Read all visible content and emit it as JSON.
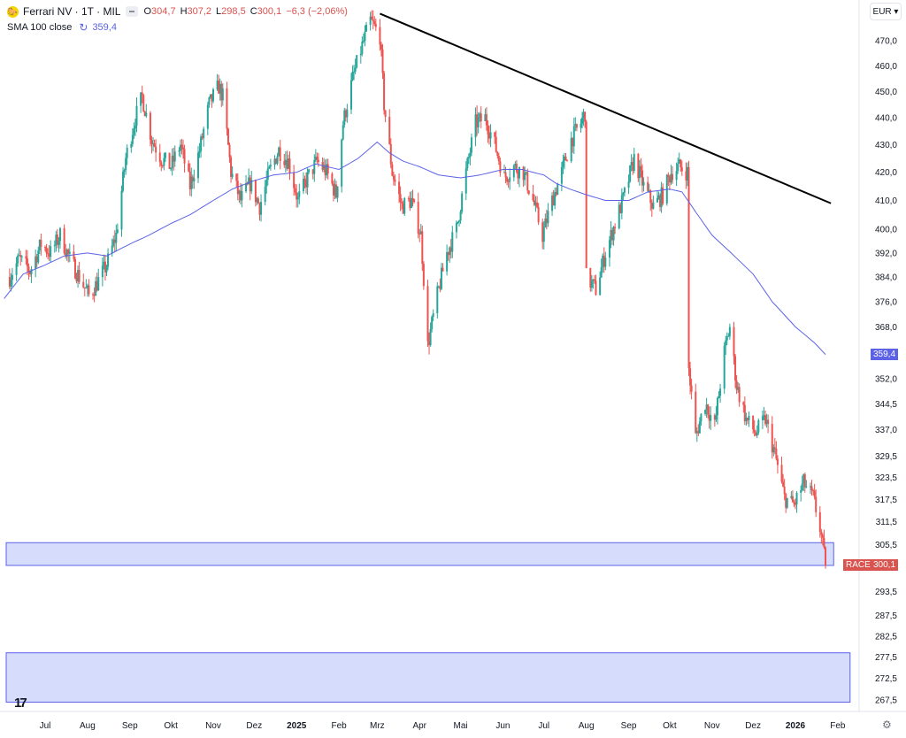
{
  "header": {
    "symbol": "Ferrari NV · 1T · MIL",
    "logo_glyph": "🐎",
    "ohlc": [
      {
        "key": "O",
        "value": "304,7"
      },
      {
        "key": "H",
        "value": "307,2"
      },
      {
        "key": "L",
        "value": "298,5"
      },
      {
        "key": "C",
        "value": "300,1"
      }
    ],
    "change": "−6,3 (−2,06%)",
    "sma_label": "SMA 100 close",
    "sma_value": "359,4"
  },
  "currency": "EUR",
  "badges": {
    "sma": "359,4",
    "symbol": "RACE",
    "last": "300,1"
  },
  "colors": {
    "up": "#26a69a",
    "down": "#ef5350",
    "sma": "#5b62e8",
    "zone_fill": "#d6dcfb",
    "zone_stroke": "#5b62e8",
    "trendline": "#000000"
  },
  "chart_data": {
    "type": "candlestick",
    "y_axis_ticks": [
      "470,0",
      "460,0",
      "450,0",
      "440,0",
      "430,0",
      "420,0",
      "410,0",
      "400,0",
      "392,0",
      "384,0",
      "376,0",
      "368,0",
      "359,4",
      "352,0",
      "344,5",
      "337,0",
      "329,5",
      "323,5",
      "317,5",
      "311,5",
      "305,5",
      "300,1",
      "293,5",
      "287,5",
      "282,5",
      "277,5",
      "272,5",
      "267,5"
    ],
    "y_scale": "log",
    "y_range": [
      265.0,
      480.0
    ],
    "x_axis_ticks": [
      {
        "label": "Jul",
        "date": "2024-07-01",
        "bold": false
      },
      {
        "label": "Aug",
        "date": "2024-08-01",
        "bold": false
      },
      {
        "label": "Sep",
        "date": "2024-09-01",
        "bold": false
      },
      {
        "label": "Okt",
        "date": "2024-10-01",
        "bold": false
      },
      {
        "label": "Nov",
        "date": "2024-11-01",
        "bold": false
      },
      {
        "label": "Dez",
        "date": "2024-12-01",
        "bold": false
      },
      {
        "label": "2025",
        "date": "2025-01-01",
        "bold": true
      },
      {
        "label": "Feb",
        "date": "2025-02-01",
        "bold": false
      },
      {
        "label": "Mrz",
        "date": "2025-03-01",
        "bold": false
      },
      {
        "label": "Apr",
        "date": "2025-04-01",
        "bold": false
      },
      {
        "label": "Mai",
        "date": "2025-05-01",
        "bold": false
      },
      {
        "label": "Jun",
        "date": "2025-06-01",
        "bold": false
      },
      {
        "label": "Jul",
        "date": "2025-07-01",
        "bold": false
      },
      {
        "label": "Aug",
        "date": "2025-08-01",
        "bold": false
      },
      {
        "label": "Sep",
        "date": "2025-09-01",
        "bold": false
      },
      {
        "label": "Okt",
        "date": "2025-10-01",
        "bold": false
      },
      {
        "label": "Nov",
        "date": "2025-11-01",
        "bold": false
      },
      {
        "label": "Dez",
        "date": "2025-12-01",
        "bold": false
      },
      {
        "label": "2026",
        "date": "2026-01-01",
        "bold": true
      },
      {
        "label": "Feb",
        "date": "2026-02-01",
        "bold": false
      }
    ],
    "close_path": [
      [
        "2024-06-05",
        384
      ],
      [
        "2024-06-12",
        390
      ],
      [
        "2024-06-20",
        386
      ],
      [
        "2024-06-28",
        395
      ],
      [
        "2024-07-05",
        392
      ],
      [
        "2024-07-12",
        398
      ],
      [
        "2024-07-19",
        390
      ],
      [
        "2024-07-26",
        384
      ],
      [
        "2024-08-02",
        378
      ],
      [
        "2024-08-08",
        382
      ],
      [
        "2024-08-15",
        388
      ],
      [
        "2024-08-22",
        398
      ],
      [
        "2024-08-29",
        425
      ],
      [
        "2024-09-05",
        440
      ],
      [
        "2024-09-10",
        448
      ],
      [
        "2024-09-17",
        432
      ],
      [
        "2024-09-24",
        425
      ],
      [
        "2024-10-01",
        422
      ],
      [
        "2024-10-08",
        430
      ],
      [
        "2024-10-15",
        415
      ],
      [
        "2024-10-22",
        428
      ],
      [
        "2024-10-29",
        445
      ],
      [
        "2024-11-05",
        452
      ],
      [
        "2024-11-08",
        448
      ],
      [
        "2024-11-14",
        420
      ],
      [
        "2024-11-21",
        410
      ],
      [
        "2024-11-28",
        416
      ],
      [
        "2024-12-05",
        408
      ],
      [
        "2024-12-12",
        420
      ],
      [
        "2024-12-19",
        428
      ],
      [
        "2024-12-26",
        424
      ],
      [
        "2025-01-02",
        410
      ],
      [
        "2025-01-09",
        418
      ],
      [
        "2025-01-16",
        424
      ],
      [
        "2025-01-23",
        420
      ],
      [
        "2025-01-30",
        412
      ],
      [
        "2025-02-04",
        438
      ],
      [
        "2025-02-11",
        455
      ],
      [
        "2025-02-18",
        468
      ],
      [
        "2025-02-24",
        478
      ],
      [
        "2025-03-03",
        472
      ],
      [
        "2025-03-06",
        445
      ],
      [
        "2025-03-12",
        420
      ],
      [
        "2025-03-19",
        408
      ],
      [
        "2025-03-26",
        410
      ],
      [
        "2025-04-02",
        398
      ],
      [
        "2025-04-07",
        362
      ],
      [
        "2025-04-14",
        378
      ],
      [
        "2025-04-21",
        392
      ],
      [
        "2025-04-28",
        400
      ],
      [
        "2025-05-05",
        420
      ],
      [
        "2025-05-12",
        438
      ],
      [
        "2025-05-19",
        440
      ],
      [
        "2025-05-26",
        430
      ],
      [
        "2025-06-02",
        418
      ],
      [
        "2025-06-09",
        422
      ],
      [
        "2025-06-16",
        420
      ],
      [
        "2025-06-23",
        410
      ],
      [
        "2025-06-30",
        398
      ],
      [
        "2025-07-07",
        410
      ],
      [
        "2025-07-14",
        420
      ],
      [
        "2025-07-21",
        432
      ],
      [
        "2025-07-28",
        438
      ],
      [
        "2025-07-31",
        442
      ],
      [
        "2025-08-01",
        384
      ],
      [
        "2025-08-08",
        380
      ],
      [
        "2025-08-15",
        392
      ],
      [
        "2025-08-22",
        402
      ],
      [
        "2025-08-29",
        412
      ],
      [
        "2025-09-05",
        425
      ],
      [
        "2025-09-12",
        415
      ],
      [
        "2025-09-19",
        408
      ],
      [
        "2025-09-26",
        412
      ],
      [
        "2025-10-02",
        420
      ],
      [
        "2025-10-08",
        422
      ],
      [
        "2025-10-14",
        420
      ],
      [
        "2025-10-15",
        355
      ],
      [
        "2025-10-20",
        335
      ],
      [
        "2025-10-27",
        345
      ],
      [
        "2025-11-03",
        338
      ],
      [
        "2025-11-10",
        360
      ],
      [
        "2025-11-14",
        368
      ],
      [
        "2025-11-19",
        350
      ],
      [
        "2025-11-26",
        340
      ],
      [
        "2025-12-03",
        336
      ],
      [
        "2025-12-10",
        340
      ],
      [
        "2025-12-17",
        330
      ],
      [
        "2025-12-24",
        318
      ],
      [
        "2025-12-31",
        316
      ],
      [
        "2026-01-07",
        322
      ],
      [
        "2026-01-14",
        318
      ],
      [
        "2026-01-19",
        310
      ],
      [
        "2026-01-23",
        300.1
      ]
    ],
    "series": [
      {
        "name": "SMA 100 close",
        "points": [
          [
            "2024-06-01",
            377
          ],
          [
            "2024-06-15",
            385
          ],
          [
            "2024-07-01",
            388
          ],
          [
            "2024-07-15",
            391
          ],
          [
            "2024-08-01",
            392
          ],
          [
            "2024-08-15",
            391
          ],
          [
            "2024-09-01",
            395
          ],
          [
            "2024-09-15",
            398
          ],
          [
            "2024-10-01",
            402
          ],
          [
            "2024-10-15",
            405
          ],
          [
            "2024-11-01",
            410
          ],
          [
            "2024-11-15",
            414
          ],
          [
            "2024-12-01",
            417
          ],
          [
            "2024-12-15",
            419
          ],
          [
            "2025-01-01",
            420
          ],
          [
            "2025-01-15",
            423
          ],
          [
            "2025-02-01",
            421
          ],
          [
            "2025-02-15",
            425
          ],
          [
            "2025-03-01",
            431
          ],
          [
            "2025-03-10",
            427
          ],
          [
            "2025-03-20",
            424
          ],
          [
            "2025-04-01",
            422
          ],
          [
            "2025-04-15",
            419
          ],
          [
            "2025-05-01",
            418
          ],
          [
            "2025-05-15",
            419
          ],
          [
            "2025-06-01",
            421
          ],
          [
            "2025-06-15",
            421
          ],
          [
            "2025-07-01",
            419
          ],
          [
            "2025-07-10",
            416
          ],
          [
            "2025-07-20",
            414
          ],
          [
            "2025-08-01",
            412
          ],
          [
            "2025-08-15",
            410
          ],
          [
            "2025-09-01",
            410
          ],
          [
            "2025-09-15",
            413
          ],
          [
            "2025-10-01",
            414
          ],
          [
            "2025-10-10",
            413
          ],
          [
            "2025-10-20",
            406
          ],
          [
            "2025-11-01",
            398
          ],
          [
            "2025-11-15",
            392
          ],
          [
            "2025-12-01",
            385
          ],
          [
            "2025-12-15",
            376
          ],
          [
            "2026-01-01",
            368
          ],
          [
            "2026-01-15",
            363
          ],
          [
            "2026-01-23",
            359.4
          ]
        ]
      }
    ],
    "annotations": {
      "trendline": {
        "from": [
          "2025-03-03",
          481
        ],
        "to": [
          "2026-01-27",
          409
        ]
      },
      "zones": [
        {
          "date_from": "2024-06-01",
          "date_to": "2026-01-29",
          "low": 300.1,
          "high": 306.0
        },
        {
          "date_from": "2024-06-01",
          "date_to": "2026-02-10",
          "low": 267.0,
          "high": 278.5
        }
      ]
    },
    "grid": false,
    "legend_position": "top-left"
  }
}
